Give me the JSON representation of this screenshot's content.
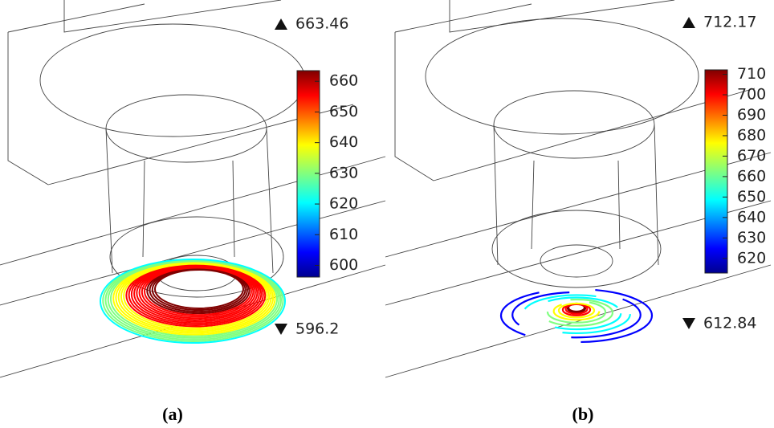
{
  "panels": [
    {
      "label": "(a)",
      "max": 663.46,
      "min": 596.2,
      "colorbar_ticks": [
        600,
        610,
        620,
        630,
        640,
        650,
        660
      ]
    },
    {
      "label": "(b)",
      "max": 712.17,
      "min": 612.84,
      "colorbar_ticks": [
        620,
        630,
        640,
        650,
        660,
        670,
        680,
        690,
        700,
        710
      ]
    }
  ]
}
